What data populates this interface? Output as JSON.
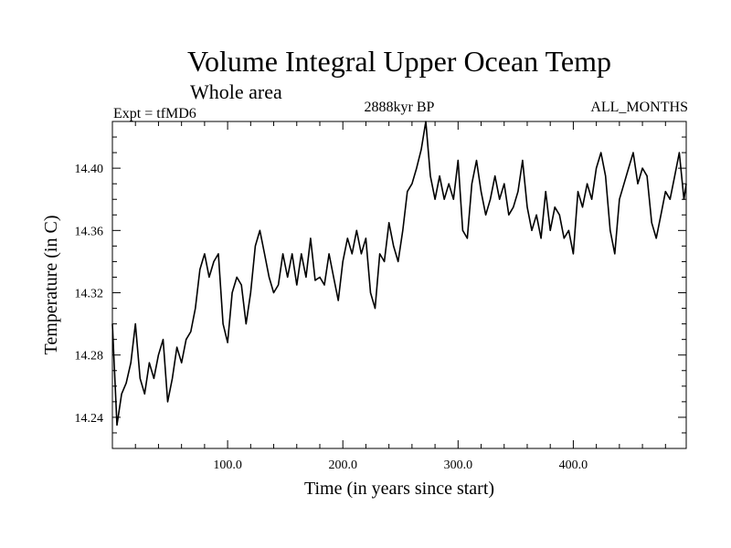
{
  "chart_data": {
    "type": "line",
    "title": "Volume Integral Upper Ocean Temp",
    "subtitle": "Whole area",
    "info_left": "Expt = tfMD6",
    "info_center": "2888kyr BP",
    "info_right": "ALL_MONTHS",
    "xlabel": "Time (in years since start)",
    "ylabel": "Temperature (in C)",
    "xlim": [
      0,
      498
    ],
    "ylim": [
      14.22,
      14.43
    ],
    "xticks": [
      100,
      200,
      300,
      400
    ],
    "xtick_labels": [
      "100.0",
      "200.0",
      "300.0",
      "400.0"
    ],
    "yticks": [
      14.24,
      14.28,
      14.32,
      14.36,
      14.4
    ],
    "ytick_labels": [
      "14.24",
      "14.28",
      "14.32",
      "14.36",
      "14.40"
    ],
    "grid": false,
    "series": [
      {
        "name": "Temperature",
        "x": [
          0,
          4,
          8,
          12,
          16,
          20,
          24,
          28,
          32,
          36,
          40,
          44,
          48,
          52,
          56,
          60,
          64,
          68,
          72,
          76,
          80,
          84,
          88,
          92,
          96,
          100,
          104,
          108,
          112,
          116,
          120,
          124,
          128,
          132,
          136,
          140,
          144,
          148,
          152,
          156,
          160,
          164,
          168,
          172,
          176,
          180,
          184,
          188,
          192,
          196,
          200,
          204,
          208,
          212,
          216,
          220,
          224,
          228,
          232,
          236,
          240,
          244,
          248,
          252,
          256,
          260,
          264,
          268,
          272,
          276,
          280,
          284,
          288,
          292,
          296,
          300,
          304,
          308,
          312,
          316,
          320,
          324,
          328,
          332,
          336,
          340,
          344,
          348,
          352,
          356,
          360,
          364,
          368,
          372,
          376,
          380,
          384,
          388,
          392,
          396,
          400,
          404,
          408,
          412,
          416,
          420,
          424,
          428,
          432,
          436,
          440,
          444,
          448,
          452,
          456,
          460,
          464,
          468,
          472,
          476,
          480,
          484,
          488,
          492,
          496,
          498
        ],
        "values": [
          14.3,
          14.235,
          14.255,
          14.262,
          14.275,
          14.3,
          14.265,
          14.255,
          14.275,
          14.265,
          14.28,
          14.29,
          14.25,
          14.265,
          14.285,
          14.275,
          14.29,
          14.295,
          14.31,
          14.335,
          14.345,
          14.33,
          14.34,
          14.345,
          14.3,
          14.288,
          14.32,
          14.33,
          14.325,
          14.3,
          14.32,
          14.35,
          14.36,
          14.345,
          14.33,
          14.32,
          14.325,
          14.345,
          14.33,
          14.345,
          14.325,
          14.345,
          14.33,
          14.355,
          14.328,
          14.33,
          14.325,
          14.345,
          14.33,
          14.315,
          14.34,
          14.355,
          14.345,
          14.36,
          14.345,
          14.355,
          14.32,
          14.31,
          14.345,
          14.34,
          14.365,
          14.35,
          14.34,
          14.36,
          14.385,
          14.39,
          14.4,
          14.412,
          14.43,
          14.395,
          14.38,
          14.395,
          14.38,
          14.39,
          14.38,
          14.405,
          14.36,
          14.355,
          14.39,
          14.405,
          14.385,
          14.37,
          14.38,
          14.395,
          14.38,
          14.39,
          14.37,
          14.375,
          14.385,
          14.405,
          14.375,
          14.36,
          14.37,
          14.355,
          14.385,
          14.36,
          14.375,
          14.37,
          14.355,
          14.36,
          14.345,
          14.385,
          14.375,
          14.39,
          14.38,
          14.4,
          14.41,
          14.395,
          14.36,
          14.345,
          14.38,
          14.39,
          14.4,
          14.41,
          14.39,
          14.4,
          14.395,
          14.365,
          14.355,
          14.37,
          14.385,
          14.38,
          14.395,
          14.41,
          14.38,
          14.39
        ]
      }
    ]
  }
}
